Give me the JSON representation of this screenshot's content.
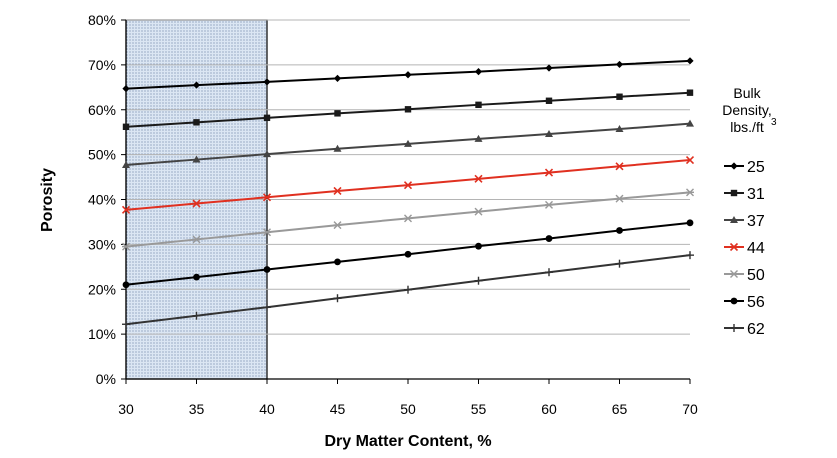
{
  "chart_data": {
    "type": "line",
    "title": "",
    "xlabel": "Dry Matter Content, %",
    "ylabel": "Porosity",
    "x": [
      30,
      35,
      40,
      45,
      50,
      55,
      60,
      65,
      70
    ],
    "xlim": [
      30,
      70
    ],
    "ylim": [
      0,
      0.8
    ],
    "x_ticks": [
      "30",
      "35",
      "40",
      "45",
      "50",
      "55",
      "60",
      "65",
      "70"
    ],
    "y_ticks": [
      "0%",
      "10%",
      "20%",
      "30%",
      "40%",
      "50%",
      "60%",
      "70%",
      "80%"
    ],
    "grid": true,
    "highlight_region": {
      "x": [
        30,
        40
      ],
      "fill": "#dbe6f3",
      "pattern": "dotted"
    },
    "legend": {
      "position": "right",
      "title_lines": [
        "Bulk",
        "Density,",
        "lbs./ft"
      ],
      "title_superscript": "3"
    },
    "series": [
      {
        "name": "25",
        "color": "#000000",
        "marker": "diamond",
        "values": [
          0.647,
          0.655,
          0.662,
          0.67,
          0.678,
          0.685,
          0.693,
          0.701,
          0.709
        ]
      },
      {
        "name": "31",
        "color": "#1a1a1a",
        "marker": "square",
        "values": [
          0.562,
          0.572,
          0.582,
          0.592,
          0.601,
          0.611,
          0.62,
          0.629,
          0.638
        ]
      },
      {
        "name": "37",
        "color": "#444444",
        "marker": "triangle",
        "values": [
          0.477,
          0.489,
          0.501,
          0.513,
          0.524,
          0.535,
          0.546,
          0.557,
          0.569
        ]
      },
      {
        "name": "44",
        "color": "#e03020",
        "marker": "x",
        "values": [
          0.377,
          0.391,
          0.405,
          0.419,
          0.432,
          0.446,
          0.46,
          0.474,
          0.488
        ]
      },
      {
        "name": "50",
        "color": "#999999",
        "marker": "star",
        "values": [
          0.295,
          0.311,
          0.327,
          0.343,
          0.358,
          0.373,
          0.388,
          0.402,
          0.416
        ]
      },
      {
        "name": "56",
        "color": "#000000",
        "marker": "circle",
        "values": [
          0.21,
          0.227,
          0.244,
          0.261,
          0.278,
          0.296,
          0.313,
          0.331,
          0.348
        ]
      },
      {
        "name": "62",
        "color": "#333333",
        "marker": "plus",
        "values": [
          0.122,
          0.141,
          0.16,
          0.18,
          0.199,
          0.219,
          0.238,
          0.257,
          0.276
        ]
      }
    ]
  }
}
